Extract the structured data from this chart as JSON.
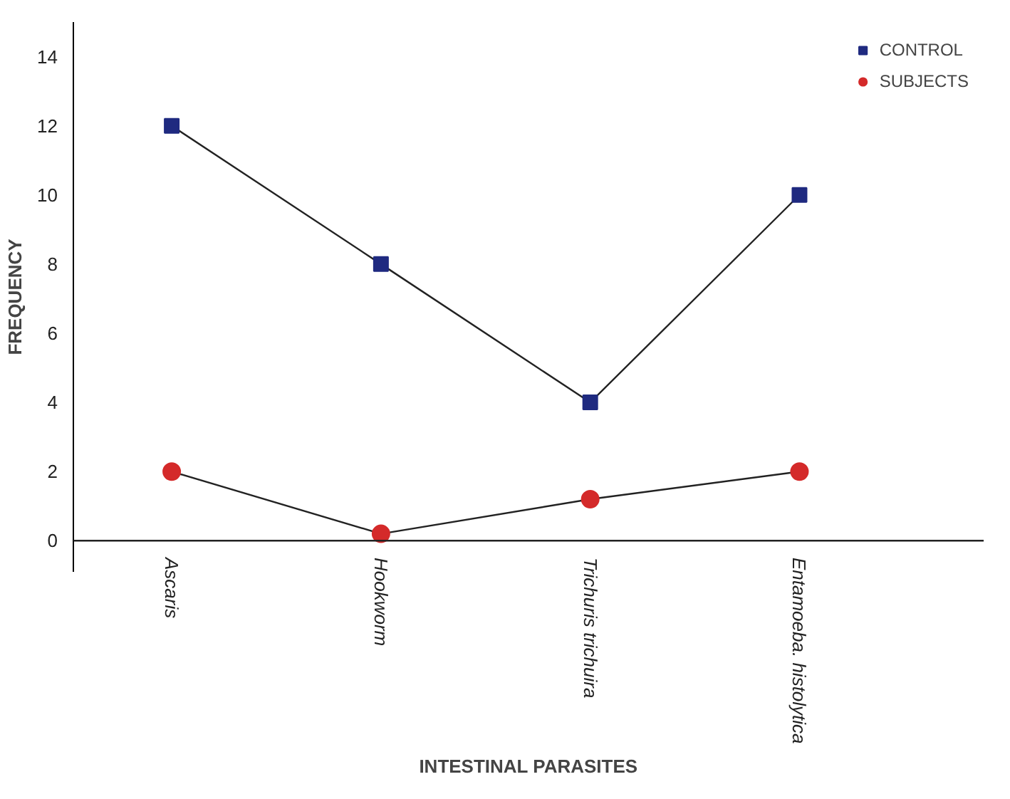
{
  "chart_data": {
    "type": "line",
    "xlabel": "INTESTINAL PARASITES",
    "ylabel": "FREQUENCY",
    "categories": [
      "Ascaris",
      "Hookworm",
      "Trichuris trichuira",
      "Entamoeba. histolytica"
    ],
    "series": [
      {
        "name": "CONTROL",
        "color": "#1f2a80",
        "marker": "square",
        "values": [
          12,
          8,
          4,
          10
        ]
      },
      {
        "name": "SUBJECTS",
        "color": "#d42a2a",
        "marker": "circle",
        "values": [
          2,
          0.2,
          1.2,
          2
        ]
      }
    ],
    "ylim": [
      -0.9,
      15
    ],
    "yticks": [
      0,
      2,
      4,
      6,
      8,
      10,
      12,
      14
    ],
    "grid": false,
    "legend": "top right",
    "line_style": "solid"
  }
}
